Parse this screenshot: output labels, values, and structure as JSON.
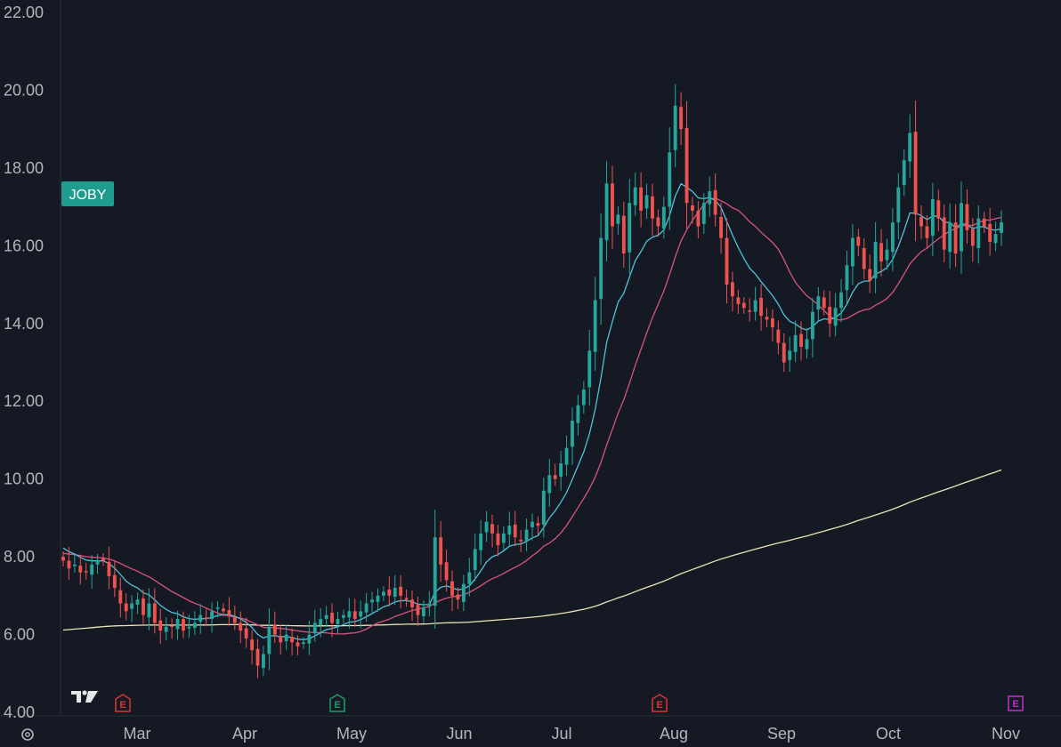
{
  "symbol": "JOBY",
  "colors": {
    "background": "#151924",
    "up": "#26a69a",
    "down": "#ef5350",
    "ma_fast": "#4fc3d9",
    "ma_mid": "#d9537f",
    "ma_slow": "#ece5b6",
    "badge": "#1f9c8e",
    "earnings_red": "#d9372f",
    "earnings_green": "#1f9c6a",
    "earnings_purple": "#c02fd1",
    "axis_text": "#b2b5be"
  },
  "logo_icon": "tradingview-logo-icon",
  "settings_icon": "gear-icon",
  "earnings_label": "E",
  "chart_data": {
    "type": "candlestick",
    "ylim": [
      4,
      22
    ],
    "y_ticks": [
      "4.00",
      "6.00",
      "8.00",
      "10.00",
      "12.00",
      "14.00",
      "16.00",
      "18.00",
      "20.00",
      "22.00"
    ],
    "x_months": [
      "Mar",
      "Apr",
      "May",
      "Jun",
      "Jul",
      "Aug",
      "Sep",
      "Oct",
      "Nov"
    ],
    "earnings_markers": [
      {
        "month": "Mar",
        "color": "red"
      },
      {
        "month": "May",
        "color": "green"
      },
      {
        "month": "Aug",
        "color": "red"
      },
      {
        "month": "Nov",
        "color": "purple"
      }
    ],
    "closes": [
      7.9,
      7.7,
      7.8,
      7.6,
      7.6,
      7.8,
      7.9,
      7.9,
      7.5,
      7.2,
      6.8,
      6.6,
      6.8,
      6.9,
      6.5,
      6.8,
      6.3,
      6.1,
      6.2,
      6.2,
      6.4,
      6.1,
      6.2,
      6.3,
      6.5,
      6.4,
      6.6,
      6.7,
      6.6,
      6.5,
      6.3,
      6.1,
      5.9,
      5.6,
      5.2,
      5.5,
      6.2,
      6.0,
      5.8,
      6.0,
      5.8,
      5.7,
      5.8,
      6.0,
      6.3,
      6.4,
      6.5,
      6.3,
      6.4,
      6.5,
      6.6,
      6.4,
      6.6,
      6.8,
      6.9,
      7.0,
      7.1,
      7.0,
      7.2,
      7.0,
      6.9,
      6.7,
      6.5,
      6.7,
      6.8,
      8.5,
      7.8,
      7.4,
      7.0,
      6.9,
      7.3,
      7.6,
      8.2,
      8.6,
      8.9,
      8.6,
      8.3,
      8.6,
      8.8,
      8.5,
      8.4,
      8.7,
      8.9,
      8.8,
      9.7,
      10.1,
      10.0,
      10.4,
      10.8,
      11.5,
      11.9,
      12.3,
      13.3,
      14.6,
      16.2,
      17.6,
      16.5,
      16.8,
      15.8,
      17.1,
      17.5,
      16.9,
      17.3,
      16.7,
      16.5,
      17.0,
      18.4,
      19.6,
      19.0,
      17.1,
      16.9,
      16.5,
      17.1,
      17.4,
      16.8,
      16.2,
      15.0,
      14.7,
      14.5,
      14.4,
      14.3,
      14.6,
      14.2,
      14.1,
      13.9,
      13.5,
      13.0,
      13.3,
      13.7,
      13.4,
      13.6,
      14.3,
      14.7,
      14.4,
      14.0,
      14.4,
      14.8,
      15.5,
      16.2,
      16.0,
      15.4,
      15.1,
      16.1,
      15.6,
      15.9,
      16.6,
      17.5,
      18.2,
      18.9,
      16.8,
      16.5,
      16.2,
      17.2,
      16.7,
      15.9,
      16.6,
      15.8,
      17.1,
      16.4,
      16.0,
      16.7,
      16.5,
      16.1,
      16.3,
      16.6
    ]
  }
}
